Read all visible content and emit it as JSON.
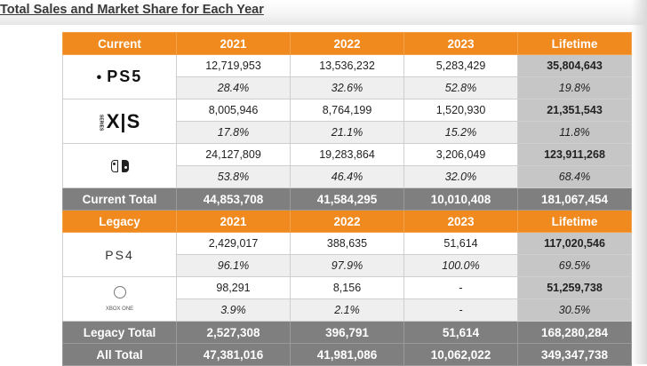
{
  "title": "Total Sales and Market Share for Each Year",
  "current": {
    "header": [
      "Current",
      "2021",
      "2022",
      "2023",
      "Lifetime"
    ],
    "platforms": [
      {
        "logo": "ps5-logo",
        "logo_text": "PS5",
        "sales": [
          "12,719,953",
          "13,536,232",
          "5,283,429",
          "35,804,643"
        ],
        "share": [
          "28.4%",
          "32.6%",
          "52.8%",
          "19.8%"
        ]
      },
      {
        "logo": "xbox-series-logo",
        "logo_text": "X|S",
        "logo_side": "SERIES",
        "sales": [
          "8,005,946",
          "8,764,199",
          "1,520,930",
          "21,351,543"
        ],
        "share": [
          "17.8%",
          "21.1%",
          "15.2%",
          "11.8%"
        ]
      },
      {
        "logo": "nintendo-switch-logo",
        "sales": [
          "24,127,809",
          "19,283,864",
          "3,206,049",
          "123,911,268"
        ],
        "share": [
          "53.8%",
          "46.4%",
          "32.0%",
          "68.4%"
        ]
      }
    ],
    "total": [
      "Current Total",
      "44,853,708",
      "41,584,295",
      "10,010,408",
      "181,067,454"
    ]
  },
  "legacy": {
    "header": [
      "Legacy",
      "2021",
      "2022",
      "2023",
      "Lifetime"
    ],
    "platforms": [
      {
        "logo": "ps4-logo",
        "logo_text": "PS4",
        "sales": [
          "2,429,017",
          "388,635",
          "51,614",
          "117,020,546"
        ],
        "share": [
          "96.1%",
          "97.9%",
          "100.0%",
          "69.5%"
        ]
      },
      {
        "logo": "xbox-one-logo",
        "logo_text": "XBOX ONE",
        "sales": [
          "98,291",
          "8,156",
          "-",
          "51,259,738"
        ],
        "share": [
          "3.9%",
          "2.1%",
          "-",
          "30.5%"
        ]
      }
    ],
    "total": [
      "Legacy Total",
      "2,527,308",
      "396,791",
      "51,614",
      "168,280,284"
    ]
  },
  "all_total": [
    "All Total",
    "47,381,016",
    "41,981,086",
    "10,062,022",
    "349,347,738"
  ]
}
